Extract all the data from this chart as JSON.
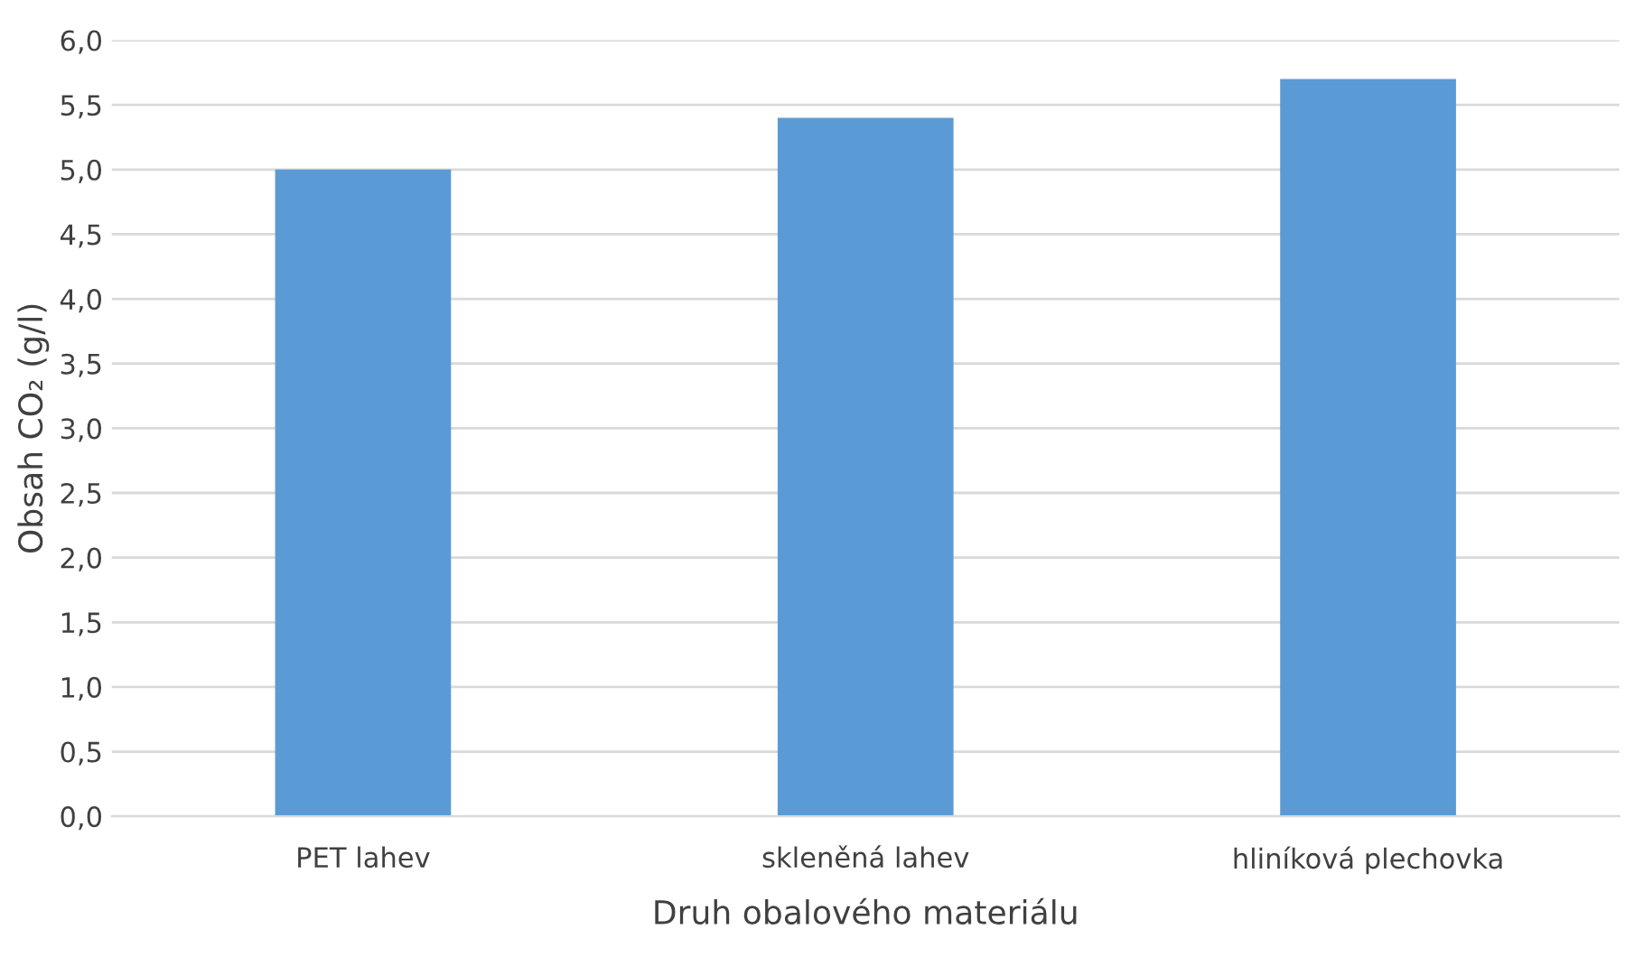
{
  "chart_data": {
    "type": "bar",
    "xlabel": "Druh obalového materiálu",
    "ylabel": "Obsah CO₂ (g/l)",
    "categories": [
      "PET lahev",
      "skleněná lahev",
      "hliníková plechovka"
    ],
    "values": [
      5.0,
      5.4,
      5.7
    ],
    "color": "#5b9bd5",
    "ylim": [
      0,
      6
    ],
    "yticks": [
      {
        "value": 0,
        "label": "0,0"
      },
      {
        "value": 0.5,
        "label": "0,5"
      },
      {
        "value": 1,
        "label": "1,0"
      },
      {
        "value": 1.5,
        "label": "1,5"
      },
      {
        "value": 2,
        "label": "2,0"
      },
      {
        "value": 2.5,
        "label": "2,5"
      },
      {
        "value": 3,
        "label": "3,0"
      },
      {
        "value": 3.5,
        "label": "3,5"
      },
      {
        "value": 4,
        "label": "4,0"
      },
      {
        "value": 4.5,
        "label": "4,5"
      },
      {
        "value": 5,
        "label": "5,0"
      },
      {
        "value": 5.5,
        "label": "5,5"
      },
      {
        "value": 6,
        "label": "6,0"
      }
    ],
    "grid": "y"
  }
}
